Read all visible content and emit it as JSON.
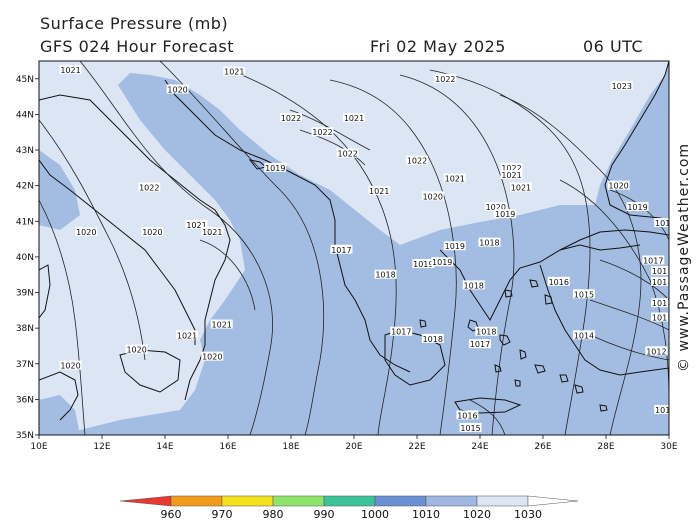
{
  "header": {
    "title": "Surface Pressure (mb)",
    "subtitle": "GFS 024 Hour Forecast",
    "date": "Fri 02 May 2025",
    "time": "06 UTC"
  },
  "map": {
    "lon_labels": [
      "10E",
      "12E",
      "14E",
      "16E",
      "18E",
      "20E",
      "22E",
      "24E",
      "26E",
      "28E",
      "30E"
    ],
    "lat_labels": [
      "45N",
      "44N",
      "43N",
      "42N",
      "41N",
      "40N",
      "39N",
      "38N",
      "37N",
      "36N",
      "35N"
    ],
    "isobar_labels": [
      {
        "text": "1021",
        "lon": 11.0,
        "lat": 45.25
      },
      {
        "text": "1021",
        "lon": 16.2,
        "lat": 45.2
      },
      {
        "text": "1020",
        "lon": 14.4,
        "lat": 44.7
      },
      {
        "text": "1022",
        "lon": 22.9,
        "lat": 45.0
      },
      {
        "text": "1023",
        "lon": 28.5,
        "lat": 44.8
      },
      {
        "text": "1022",
        "lon": 18.0,
        "lat": 43.9
      },
      {
        "text": "1021",
        "lon": 20.0,
        "lat": 43.9
      },
      {
        "text": "1022",
        "lon": 19.0,
        "lat": 43.5
      },
      {
        "text": "1022",
        "lon": 19.8,
        "lat": 42.9
      },
      {
        "text": "1022",
        "lon": 22.0,
        "lat": 42.7
      },
      {
        "text": "1019",
        "lon": 17.5,
        "lat": 42.5
      },
      {
        "text": "1022",
        "lon": 25.0,
        "lat": 42.5
      },
      {
        "text": "1021",
        "lon": 25.0,
        "lat": 42.3
      },
      {
        "text": "1021",
        "lon": 23.2,
        "lat": 42.2
      },
      {
        "text": "1021",
        "lon": 25.3,
        "lat": 41.95
      },
      {
        "text": "1020",
        "lon": 28.4,
        "lat": 42.0
      },
      {
        "text": "1022",
        "lon": 13.5,
        "lat": 41.95
      },
      {
        "text": "1021",
        "lon": 20.8,
        "lat": 41.85
      },
      {
        "text": "1020",
        "lon": 22.5,
        "lat": 41.7
      },
      {
        "text": "1020",
        "lon": 24.5,
        "lat": 41.4
      },
      {
        "text": "1019",
        "lon": 24.8,
        "lat": 41.2
      },
      {
        "text": "1019",
        "lon": 29.0,
        "lat": 41.4
      },
      {
        "text": "1021",
        "lon": 15.0,
        "lat": 40.9
      },
      {
        "text": "1021",
        "lon": 15.5,
        "lat": 40.7
      },
      {
        "text": "1020",
        "lon": 11.5,
        "lat": 40.7
      },
      {
        "text": "1020",
        "lon": 13.6,
        "lat": 40.7
      },
      {
        "text": "101",
        "lon": 29.8,
        "lat": 40.95
      },
      {
        "text": "1019",
        "lon": 23.2,
        "lat": 40.3
      },
      {
        "text": "1018",
        "lon": 24.3,
        "lat": 40.4
      },
      {
        "text": "1017",
        "lon": 19.6,
        "lat": 40.2
      },
      {
        "text": "1017",
        "lon": 29.5,
        "lat": 39.9
      },
      {
        "text": "101",
        "lon": 29.7,
        "lat": 39.6
      },
      {
        "text": "101",
        "lon": 29.7,
        "lat": 39.3
      },
      {
        "text": "101",
        "lon": 29.7,
        "lat": 38.7
      },
      {
        "text": "101",
        "lon": 29.7,
        "lat": 38.3
      },
      {
        "text": "1019",
        "lon": 22.2,
        "lat": 39.8
      },
      {
        "text": "1019",
        "lon": 22.8,
        "lat": 39.85
      },
      {
        "text": "1018",
        "lon": 21.0,
        "lat": 39.5
      },
      {
        "text": "1018",
        "lon": 23.8,
        "lat": 39.2
      },
      {
        "text": "1016",
        "lon": 26.5,
        "lat": 39.3
      },
      {
        "text": "1015",
        "lon": 27.3,
        "lat": 38.95
      },
      {
        "text": "1021",
        "lon": 15.8,
        "lat": 38.1
      },
      {
        "text": "1021",
        "lon": 14.7,
        "lat": 37.8
      },
      {
        "text": "1017",
        "lon": 21.5,
        "lat": 37.9
      },
      {
        "text": "1018",
        "lon": 22.5,
        "lat": 37.7
      },
      {
        "text": "1018",
        "lon": 24.2,
        "lat": 37.9
      },
      {
        "text": "1017",
        "lon": 24.0,
        "lat": 37.55
      },
      {
        "text": "1014",
        "lon": 27.3,
        "lat": 37.8
      },
      {
        "text": "1012",
        "lon": 29.6,
        "lat": 37.35
      },
      {
        "text": "1020",
        "lon": 13.1,
        "lat": 37.4
      },
      {
        "text": "1020",
        "lon": 15.5,
        "lat": 37.2
      },
      {
        "text": "1020",
        "lon": 11.0,
        "lat": 36.95
      },
      {
        "text": "1016",
        "lon": 23.6,
        "lat": 35.55
      },
      {
        "text": "1015",
        "lon": 23.7,
        "lat": 35.2
      },
      {
        "text": "101",
        "lon": 29.8,
        "lat": 35.7
      }
    ]
  },
  "colorbar": {
    "labels": [
      "960",
      "970",
      "980",
      "990",
      "1000",
      "1010",
      "1020",
      "1030"
    ],
    "colors": [
      "#e8382f",
      "#f39a1c",
      "#f3e21c",
      "#8ee36a",
      "#3cc39a",
      "#6a8fd2",
      "#9fb8e1",
      "#dbe5f3"
    ]
  },
  "copyright": "© www.PassageWeather.com"
}
